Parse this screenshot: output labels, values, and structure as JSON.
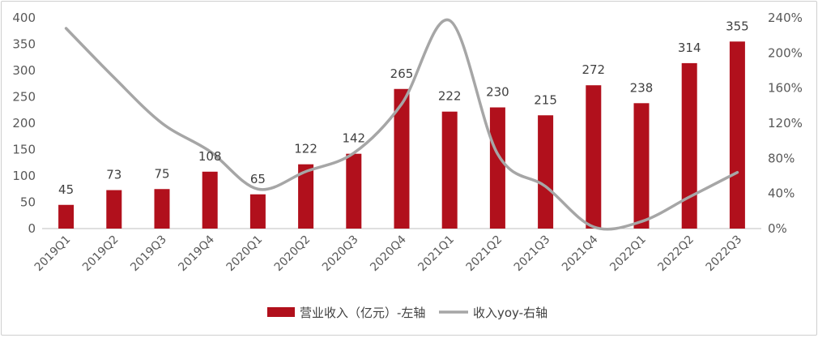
{
  "chart_data": {
    "type": "bar",
    "categories": [
      "2019Q1",
      "2019Q2",
      "2019Q3",
      "2019Q4",
      "2020Q1",
      "2020Q2",
      "2020Q3",
      "2020Q4",
      "2021Q1",
      "2021Q2",
      "2021Q3",
      "2021Q4",
      "2022Q1",
      "2022Q2",
      "2022Q3"
    ],
    "series": [
      {
        "name": "营业收入（亿元）-左轴",
        "type": "bar",
        "axis": "left",
        "color": "#b1101c",
        "values": [
          45,
          73,
          75,
          108,
          65,
          122,
          142,
          265,
          222,
          230,
          215,
          272,
          238,
          314,
          355
        ]
      },
      {
        "name": "收入yoy-右轴",
        "type": "line",
        "axis": "right",
        "color": "#a6a6a6",
        "values": [
          2.28,
          1.72,
          1.2,
          0.88,
          0.45,
          0.65,
          0.86,
          1.42,
          2.37,
          0.85,
          0.48,
          0.02,
          0.08,
          0.36,
          0.64
        ]
      }
    ],
    "y_left": {
      "ylim": [
        0,
        400
      ],
      "ticks": [
        0,
        50,
        100,
        150,
        200,
        250,
        300,
        350,
        400
      ]
    },
    "y_right": {
      "ylim": [
        0,
        2.4
      ],
      "ticks": [
        "0%",
        "40%",
        "80%",
        "120%",
        "160%",
        "200%",
        "240%"
      ]
    },
    "data_labels": [
      "45",
      "73",
      "75",
      "108",
      "65",
      "122",
      "142",
      "265",
      "222",
      "230",
      "215",
      "272",
      "238",
      "314",
      "355"
    ],
    "legend_position": "bottom",
    "grid": false
  }
}
